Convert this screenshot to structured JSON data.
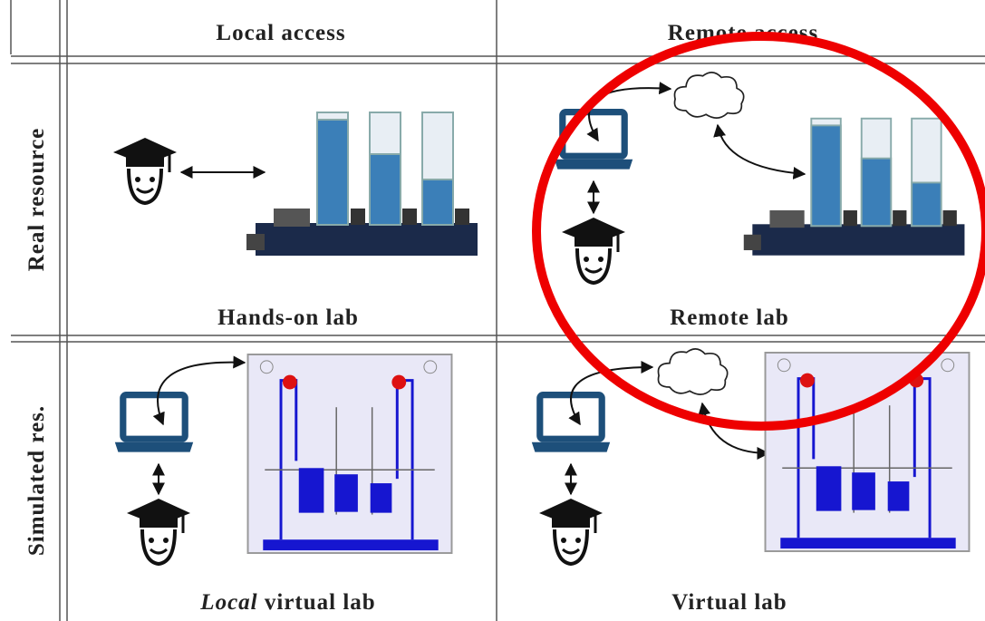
{
  "columns": [
    "Local access",
    "Remote access"
  ],
  "rows": [
    "Real resource",
    "Simulated res."
  ],
  "cells": [
    [
      "Hands-on lab",
      "Remote lab"
    ],
    [
      {
        "italic": "Local",
        "text": "virtual lab"
      },
      "Virtual lab"
    ]
  ]
}
